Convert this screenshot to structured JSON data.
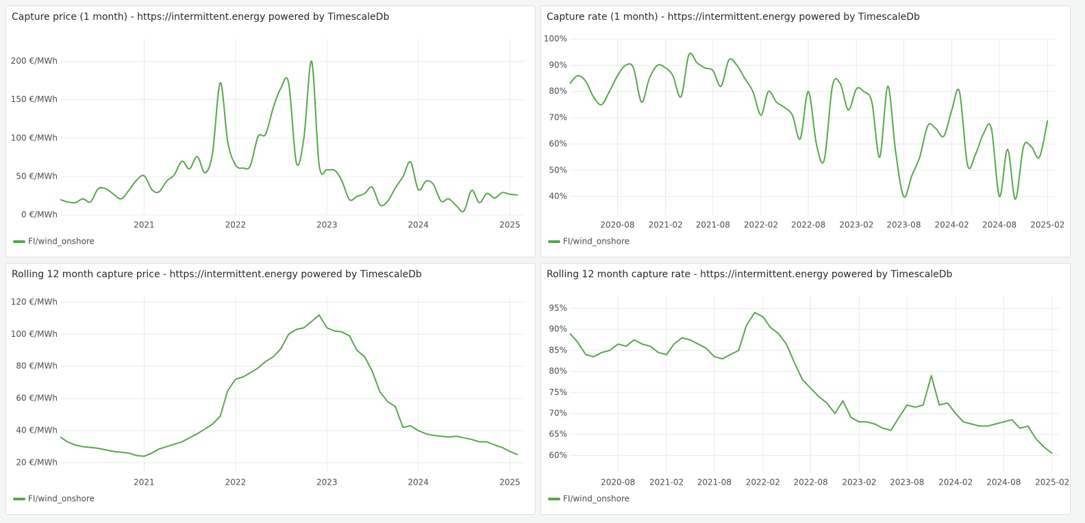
{
  "chart_data": [
    {
      "type": "line",
      "title": "Capture price (1 month) - https://intermittent.energy powered by TimescaleDb",
      "x": [
        "2020-02",
        "2020-03",
        "2020-04",
        "2020-05",
        "2020-06",
        "2020-07",
        "2020-08",
        "2020-09",
        "2020-10",
        "2020-11",
        "2020-12",
        "2021-01",
        "2021-02",
        "2021-03",
        "2021-04",
        "2021-05",
        "2021-06",
        "2021-07",
        "2021-08",
        "2021-09",
        "2021-10",
        "2021-11",
        "2021-12",
        "2022-01",
        "2022-02",
        "2022-03",
        "2022-04",
        "2022-05",
        "2022-06",
        "2022-07",
        "2022-08",
        "2022-09",
        "2022-10",
        "2022-11",
        "2022-12",
        "2023-01",
        "2023-02",
        "2023-03",
        "2023-04",
        "2023-05",
        "2023-06",
        "2023-07",
        "2023-08",
        "2023-09",
        "2023-10",
        "2023-11",
        "2023-12",
        "2024-01",
        "2024-02",
        "2024-03",
        "2024-04",
        "2024-05",
        "2024-06",
        "2024-07",
        "2024-08",
        "2024-09",
        "2024-10",
        "2024-11",
        "2024-12",
        "2025-01",
        "2025-02"
      ],
      "series": [
        {
          "name": "FI/wind_onshore",
          "color": "#56a64b",
          "values": [
            20,
            17,
            16,
            21,
            17,
            34,
            34,
            27,
            21,
            32,
            45,
            51,
            33,
            30,
            44,
            52,
            70,
            60,
            76,
            55,
            80,
            172,
            95,
            65,
            61,
            64,
            102,
            105,
            140,
            165,
            172,
            68,
            100,
            200,
            65,
            59,
            58,
            45,
            20,
            24,
            28,
            36,
            13,
            18,
            35,
            50,
            69,
            33,
            44,
            40,
            18,
            21,
            12,
            5,
            32,
            16,
            28,
            22,
            29,
            27,
            26
          ]
        }
      ],
      "xlim": [
        "2020-02",
        "2025-03"
      ],
      "xticks": [
        {
          "value": "2021-01",
          "label": "2021"
        },
        {
          "value": "2022-01",
          "label": "2022"
        },
        {
          "value": "2023-01",
          "label": "2023"
        },
        {
          "value": "2024-01",
          "label": "2024"
        },
        {
          "value": "2025-01",
          "label": "2025"
        }
      ],
      "ylim": [
        0,
        229
      ],
      "yticks": [
        {
          "value": 0,
          "label": "0 €/MWh"
        },
        {
          "value": 50,
          "label": "50 €/MWh"
        },
        {
          "value": 100,
          "label": "100 €/MWh"
        },
        {
          "value": 150,
          "label": "150 €/MWh"
        },
        {
          "value": 200,
          "label": "200 €/MWh"
        }
      ],
      "grid": true,
      "smooth": true,
      "legend": "bottom-left"
    },
    {
      "type": "line",
      "title": "Capture rate (1 month) - https://intermittent.energy powered by TimescaleDb",
      "x": [
        "2020-02",
        "2020-03",
        "2020-04",
        "2020-05",
        "2020-06",
        "2020-07",
        "2020-08",
        "2020-09",
        "2020-10",
        "2020-11",
        "2020-12",
        "2021-01",
        "2021-02",
        "2021-03",
        "2021-04",
        "2021-05",
        "2021-06",
        "2021-07",
        "2021-08",
        "2021-09",
        "2021-10",
        "2021-11",
        "2021-12",
        "2022-01",
        "2022-02",
        "2022-03",
        "2022-04",
        "2022-05",
        "2022-06",
        "2022-07",
        "2022-08",
        "2022-09",
        "2022-10",
        "2022-11",
        "2022-12",
        "2023-01",
        "2023-02",
        "2023-03",
        "2023-04",
        "2023-05",
        "2023-06",
        "2023-07",
        "2023-08",
        "2023-09",
        "2023-10",
        "2023-11",
        "2023-12",
        "2024-01",
        "2024-02",
        "2024-03",
        "2024-04",
        "2024-05",
        "2024-06",
        "2024-07",
        "2024-08",
        "2024-09",
        "2024-10",
        "2024-11",
        "2024-12",
        "2025-01",
        "2025-02"
      ],
      "series": [
        {
          "name": "FI/wind_onshore",
          "color": "#56a64b",
          "values": [
            83,
            86,
            84,
            78,
            75,
            80,
            86,
            90,
            89,
            76,
            85,
            90,
            89,
            86,
            78,
            94,
            91,
            89,
            88,
            82,
            92,
            90,
            85,
            80,
            71,
            80,
            76,
            74,
            71,
            62,
            80,
            60,
            54,
            82,
            83,
            73,
            81,
            80,
            76,
            55,
            82,
            57,
            40,
            48,
            55,
            67,
            66,
            63,
            73,
            80,
            52,
            56,
            64,
            66,
            40,
            58,
            39,
            59,
            59,
            55,
            69
          ]
        }
      ],
      "xlim": [
        "2020-02",
        "2025-03"
      ],
      "xticks": [
        "2020-08",
        "2021-02",
        "2021-08",
        "2022-02",
        "2022-08",
        "2023-02",
        "2023-08",
        "2024-02",
        "2024-08",
        "2025-02"
      ],
      "ylim": [
        33,
        100
      ],
      "yticks": [
        {
          "value": 40,
          "label": "40%"
        },
        {
          "value": 50,
          "label": "50%"
        },
        {
          "value": 60,
          "label": "60%"
        },
        {
          "value": 70,
          "label": "70%"
        },
        {
          "value": 80,
          "label": "80%"
        },
        {
          "value": 90,
          "label": "90%"
        },
        {
          "value": 100,
          "label": "100%"
        }
      ],
      "grid": true,
      "smooth": true,
      "legend": "bottom-left"
    },
    {
      "type": "line",
      "title": "Rolling 12 month capture price - https://intermittent.energy powered by TimescaleDb",
      "x": [
        "2020-02",
        "2020-03",
        "2020-04",
        "2020-05",
        "2020-06",
        "2020-07",
        "2020-08",
        "2020-09",
        "2020-10",
        "2020-11",
        "2020-12",
        "2021-01",
        "2021-02",
        "2021-03",
        "2021-04",
        "2021-05",
        "2021-06",
        "2021-07",
        "2021-08",
        "2021-09",
        "2021-10",
        "2021-11",
        "2021-12",
        "2022-01",
        "2022-02",
        "2022-03",
        "2022-04",
        "2022-05",
        "2022-06",
        "2022-07",
        "2022-08",
        "2022-09",
        "2022-10",
        "2022-11",
        "2022-12",
        "2023-01",
        "2023-02",
        "2023-03",
        "2023-04",
        "2023-05",
        "2023-06",
        "2023-07",
        "2023-08",
        "2023-09",
        "2023-10",
        "2023-11",
        "2023-12",
        "2024-01",
        "2024-02",
        "2024-03",
        "2024-04",
        "2024-05",
        "2024-06",
        "2024-07",
        "2024-08",
        "2024-09",
        "2024-10",
        "2024-11",
        "2024-12",
        "2025-01",
        "2025-02"
      ],
      "series": [
        {
          "name": "FI/wind_onshore",
          "color": "#56a64b",
          "values": [
            36,
            33,
            31,
            30,
            29.5,
            29,
            28,
            27,
            26.5,
            26,
            24.5,
            24,
            26,
            28.5,
            30,
            31.5,
            33,
            35.5,
            38,
            41,
            44,
            49,
            65,
            72,
            73.5,
            76,
            79,
            83,
            86,
            91,
            100,
            103,
            104,
            108,
            112,
            104,
            102,
            101.5,
            99,
            90,
            86,
            77,
            64,
            58,
            55,
            42,
            43,
            40,
            38,
            37,
            36.5,
            36,
            36.5,
            35.5,
            34.5,
            33,
            33,
            31,
            29.5,
            27,
            25
          ]
        }
      ],
      "xlim": [
        "2020-02",
        "2025-03"
      ],
      "xticks": [
        {
          "value": "2021-01",
          "label": "2021"
        },
        {
          "value": "2022-01",
          "label": "2022"
        },
        {
          "value": "2023-01",
          "label": "2023"
        },
        {
          "value": "2024-01",
          "label": "2024"
        },
        {
          "value": "2025-01",
          "label": "2025"
        }
      ],
      "ylim": [
        14,
        124
      ],
      "yticks": [
        {
          "value": 20,
          "label": "20 €/MWh"
        },
        {
          "value": 40,
          "label": "40 €/MWh"
        },
        {
          "value": 60,
          "label": "60 €/MWh"
        },
        {
          "value": 80,
          "label": "80 €/MWh"
        },
        {
          "value": 100,
          "label": "100 €/MWh"
        },
        {
          "value": 120,
          "label": "120 €/MWh"
        }
      ],
      "grid": true,
      "smooth": false,
      "legend": "bottom-left"
    },
    {
      "type": "line",
      "title": "Rolling 12 month capture rate - https://intermittent.energy powered by TimescaleDb",
      "x": [
        "2020-02",
        "2020-03",
        "2020-04",
        "2020-05",
        "2020-06",
        "2020-07",
        "2020-08",
        "2020-09",
        "2020-10",
        "2020-11",
        "2020-12",
        "2021-01",
        "2021-02",
        "2021-03",
        "2021-04",
        "2021-05",
        "2021-06",
        "2021-07",
        "2021-08",
        "2021-09",
        "2021-10",
        "2021-11",
        "2021-12",
        "2022-01",
        "2022-02",
        "2022-03",
        "2022-04",
        "2022-05",
        "2022-06",
        "2022-07",
        "2022-08",
        "2022-09",
        "2022-10",
        "2022-11",
        "2022-12",
        "2023-01",
        "2023-02",
        "2023-03",
        "2023-04",
        "2023-05",
        "2023-06",
        "2023-07",
        "2023-08",
        "2023-09",
        "2023-10",
        "2023-11",
        "2023-12",
        "2024-01",
        "2024-02",
        "2024-03",
        "2024-04",
        "2024-05",
        "2024-06",
        "2024-07",
        "2024-08",
        "2024-09",
        "2024-10",
        "2024-11",
        "2024-12",
        "2025-01",
        "2025-02"
      ],
      "series": [
        {
          "name": "FI/wind_onshore",
          "color": "#56a64b",
          "values": [
            89,
            87,
            84,
            83.5,
            84.5,
            85,
            86.5,
            86,
            87.5,
            86.5,
            86,
            84.5,
            84,
            86.5,
            88,
            87.5,
            86.5,
            85.5,
            83.5,
            83,
            84,
            85,
            91,
            94,
            93,
            90.5,
            89,
            86.5,
            82,
            78,
            76,
            74,
            72.5,
            70,
            73,
            69,
            68,
            68,
            67.5,
            66.5,
            66,
            69,
            72,
            71.5,
            72,
            79,
            72,
            72.5,
            70,
            68,
            67.5,
            67,
            67,
            67.5,
            68,
            68.5,
            66.5,
            67,
            64,
            62,
            60.5
          ]
        }
      ],
      "xlim": [
        "2020-02",
        "2025-03"
      ],
      "xticks": [
        "2020-08",
        "2021-02",
        "2021-08",
        "2022-02",
        "2022-08",
        "2023-02",
        "2023-08",
        "2024-02",
        "2024-08",
        "2025-02"
      ],
      "ylim": [
        56,
        98
      ],
      "yticks": [
        {
          "value": 60,
          "label": "60%"
        },
        {
          "value": 65,
          "label": "65%"
        },
        {
          "value": 70,
          "label": "70%"
        },
        {
          "value": 75,
          "label": "75%"
        },
        {
          "value": 80,
          "label": "80%"
        },
        {
          "value": 85,
          "label": "85%"
        },
        {
          "value": 90,
          "label": "90%"
        },
        {
          "value": 95,
          "label": "95%"
        }
      ],
      "grid": true,
      "smooth": false,
      "legend": "bottom-left"
    }
  ]
}
